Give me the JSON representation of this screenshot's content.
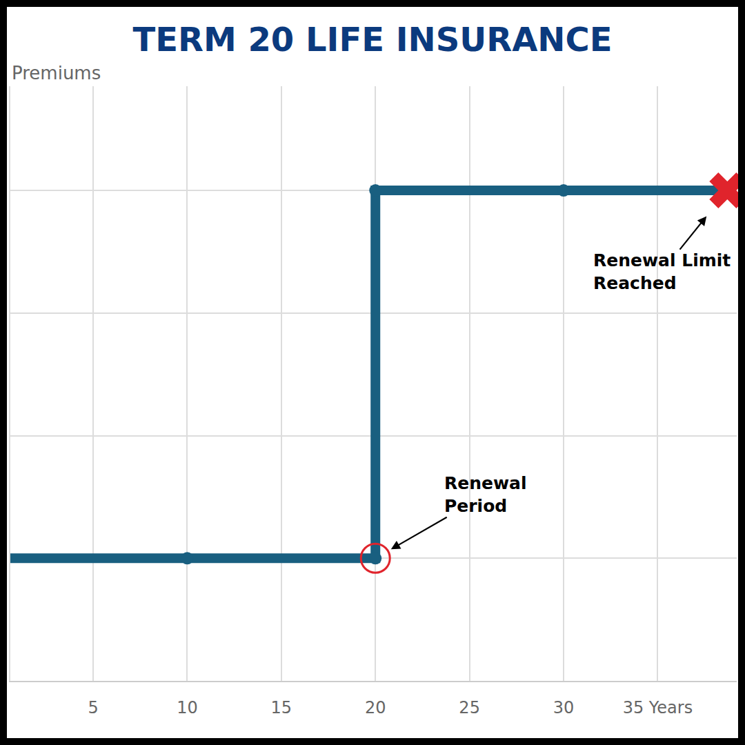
{
  "chart_data": {
    "type": "line",
    "title": "TERM 20 LIFE INSURANCE",
    "ylabel": "Premiums",
    "x": [
      0,
      10,
      20,
      20,
      30,
      38.7
    ],
    "values": [
      1,
      1,
      1,
      4,
      4,
      4
    ],
    "color": "#195f80",
    "marker": "circle",
    "xlim": [
      0.6,
      39.2
    ],
    "xticks": [
      5,
      10,
      15,
      20,
      25,
      30,
      {
        "value": 35,
        "label": "35 Years"
      }
    ],
    "ylim": [
      0,
      4.85
    ],
    "yticks": [
      0,
      1,
      2,
      3,
      4
    ],
    "grid": true,
    "tick_labels": "x",
    "annotations": [
      {
        "text": [
          "Renewal",
          "Period"
        ],
        "x": 20,
        "y": 1,
        "marker": "circle-open",
        "color": "#e0242c"
      },
      {
        "text": [
          "Renewal Limit",
          "Reached"
        ],
        "x": 38.7,
        "y": 4,
        "marker": "x",
        "color": "#e0242c"
      }
    ]
  }
}
